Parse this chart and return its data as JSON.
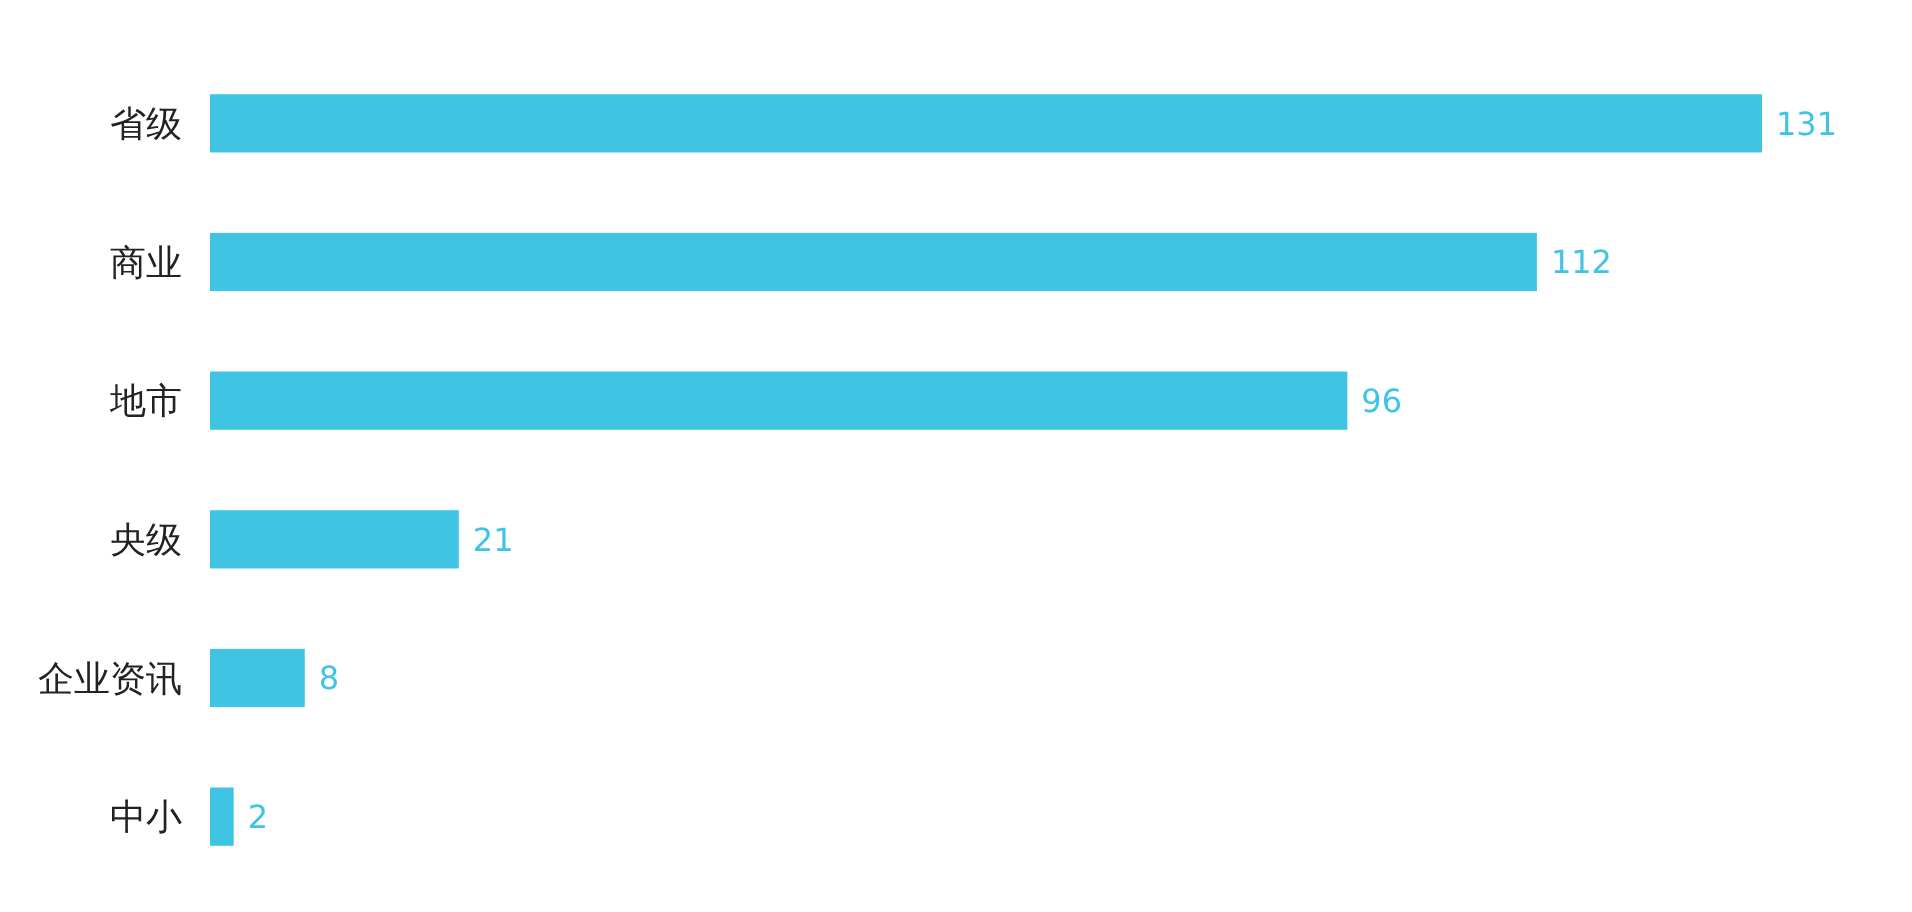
{
  "chart_data": {
    "type": "bar",
    "orientation": "horizontal",
    "categories": [
      "省级",
      "商业",
      "地市",
      "央级",
      "企业资讯",
      "中小"
    ],
    "values": [
      131,
      112,
      96,
      21,
      8,
      2
    ],
    "color": "#40c4e4",
    "data_labels": true
  }
}
